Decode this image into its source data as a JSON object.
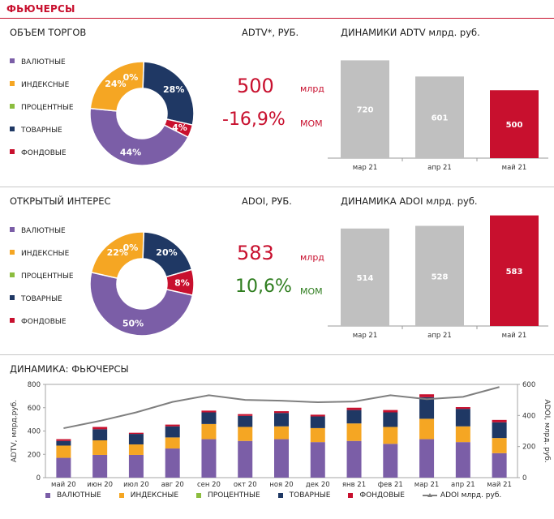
{
  "page": {
    "title": "ФЬЮЧЕРСЫ"
  },
  "colors": {
    "valutnye": "#7b5ea7",
    "indeksnye": "#f5a623",
    "procentnye": "#8cbd3f",
    "tovarnye": "#1f3864",
    "fondovye": "#c8102e",
    "bar_gray": "#c0c0c0",
    "bar_red": "#c8102e",
    "line": "#7f7f7f"
  },
  "legend_labels": [
    "ВАЛЮТНЫЕ",
    "ИНДЕКСНЫЕ",
    "ПРОЦЕНТНЫЕ",
    "ТОВАРНЫЕ",
    "ФОНДОВЫЕ"
  ],
  "volume": {
    "title": "ОБЪЕМ ТОРГОВ",
    "metric_label": "ADTV*, РУБ.",
    "value": "500",
    "value_unit": "млрд",
    "change": "-16,9%",
    "change_unit": "МОМ"
  },
  "interest": {
    "title": "ОТКРЫТЫЙ ИНТЕРЕС",
    "metric_label": "ADOI, РУБ.",
    "value": "583",
    "value_unit": "млрд",
    "change": "10,6%",
    "change_unit": "МОМ"
  },
  "bottom": {
    "title": "ДИНАМИКА: ФЬЮЧЕРСЫ",
    "legend_line": "ADOI млрд. руб."
  },
  "chart_data": [
    {
      "id": "volume-donut",
      "type": "pie",
      "donut": true,
      "labels": [
        "ВАЛЮТНЫЕ",
        "ИНДЕКСНЫЕ",
        "ПРОЦЕНТНЫЕ",
        "ТОВАРНЫЕ",
        "ФОНДОВЫЕ"
      ],
      "values": [
        44,
        24,
        0,
        28,
        4
      ],
      "value_labels": [
        "44%",
        "24%",
        "0%",
        "28%",
        "4%"
      ]
    },
    {
      "id": "adtv-bars",
      "type": "bar",
      "title": "ДИНАМИКИ ADTV млрд. руб.",
      "categories": [
        "мар 21",
        "апр 21",
        "май 21"
      ],
      "values": [
        720,
        601,
        500
      ],
      "ylim": [
        0,
        800
      ],
      "highlight_last": true
    },
    {
      "id": "interest-donut",
      "type": "pie",
      "donut": true,
      "labels": [
        "ВАЛЮТНЫЕ",
        "ИНДЕКСНЫЕ",
        "ПРОЦЕНТНЫЕ",
        "ТОВАРНЫЕ",
        "ФОНДОВЫЕ"
      ],
      "values": [
        50,
        22,
        0,
        20,
        8
      ],
      "value_labels": [
        "50%",
        "22%",
        "0%",
        "20%",
        "8%"
      ]
    },
    {
      "id": "adoi-bars",
      "type": "bar",
      "title": "ДИНАМИКА ADOI млрд. руб.",
      "categories": [
        "мар 21",
        "апр 21",
        "май 21"
      ],
      "values": [
        514,
        528,
        583
      ],
      "ylim": [
        0,
        590
      ],
      "highlight_last": true
    },
    {
      "id": "dynamics",
      "type": "bar",
      "stacked": true,
      "categories": [
        "май 20",
        "июн 20",
        "июл 20",
        "авг 20",
        "сен 20",
        "окт 20",
        "ноя 20",
        "дек 20",
        "янв 21",
        "фев 21",
        "мар 21",
        "апр 21",
        "май 21"
      ],
      "series": [
        {
          "name": "ВАЛЮТНЫЕ",
          "values": [
            170,
            195,
            195,
            250,
            330,
            315,
            330,
            305,
            315,
            290,
            330,
            305,
            210
          ]
        },
        {
          "name": "ИНДЕКСНЫЕ",
          "values": [
            105,
            125,
            90,
            95,
            130,
            120,
            110,
            120,
            150,
            145,
            175,
            135,
            130
          ]
        },
        {
          "name": "ПРОЦЕНТНЫЕ",
          "values": [
            0,
            0,
            0,
            0,
            0,
            0,
            0,
            0,
            0,
            0,
            0,
            0,
            0
          ]
        },
        {
          "name": "ТОВАРНЫЕ",
          "values": [
            40,
            95,
            90,
            95,
            100,
            95,
            115,
            100,
            115,
            125,
            185,
            150,
            135
          ]
        },
        {
          "name": "ФОНДОВЫЕ",
          "values": [
            15,
            20,
            10,
            15,
            15,
            15,
            15,
            15,
            20,
            20,
            25,
            15,
            20
          ]
        }
      ],
      "line": {
        "name": "ADOI млрд. руб.",
        "values": [
          318,
          365,
          420,
          487,
          530,
          500,
          495,
          485,
          490,
          530,
          505,
          520,
          583
        ]
      },
      "ylabel": "ADTV, млрд.руб.",
      "ylim": [
        0,
        800
      ],
      "yticks": [
        0,
        200,
        400,
        600,
        800
      ],
      "y2label": "ADOI, млрд. руб.",
      "y2lim": [
        0,
        600
      ],
      "y2ticks": [
        0,
        200,
        400,
        600
      ]
    }
  ]
}
